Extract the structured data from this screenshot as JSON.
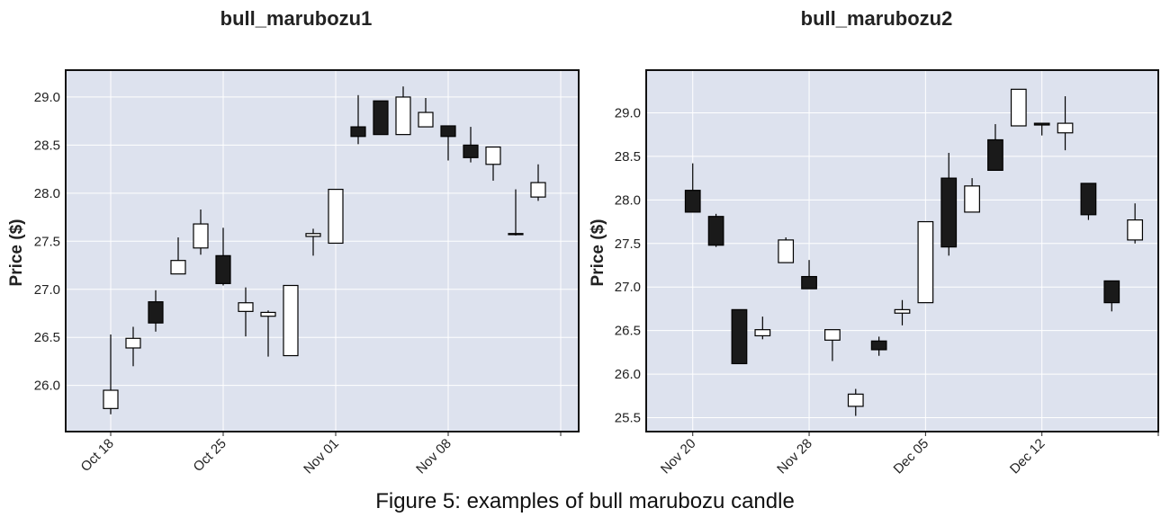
{
  "figure": {
    "caption": "Figure 5: examples of bull marubozu candle"
  },
  "chart_data": [
    {
      "type": "candlestick",
      "title": "bull_marubozu1",
      "ylabel": "Price ($)",
      "xlabel": "",
      "ylim": [
        25.52,
        29.28
      ],
      "yticks": [
        26.0,
        26.5,
        27.0,
        27.5,
        28.0,
        28.5,
        29.0
      ],
      "ytick_labels": [
        "26.0",
        "26.5",
        "27.0",
        "27.5",
        "28.0",
        "28.5",
        "29.0"
      ],
      "xtick_positions": [
        0,
        5,
        10,
        15,
        20
      ],
      "xtick_labels": [
        "Oct 18",
        "Oct 25",
        "Nov 01",
        "Nov 08",
        ""
      ],
      "x_range": [
        -2.0,
        20.8
      ],
      "grid": true,
      "colors": {
        "background": "#dde2ee",
        "up_body": "#ffffff",
        "down_body": "#1a1a1a",
        "edge": "#000000",
        "grid": "#ffffff"
      },
      "candles": [
        {
          "x": 0,
          "open": 25.76,
          "high": 26.53,
          "low": 25.7,
          "close": 25.95
        },
        {
          "x": 1,
          "open": 26.39,
          "high": 26.61,
          "low": 26.2,
          "close": 26.49
        },
        {
          "x": 2,
          "open": 26.87,
          "high": 26.99,
          "low": 26.56,
          "close": 26.65
        },
        {
          "x": 3,
          "open": 27.16,
          "high": 27.54,
          "low": 27.16,
          "close": 27.3
        },
        {
          "x": 4,
          "open": 27.43,
          "high": 27.83,
          "low": 27.36,
          "close": 27.68
        },
        {
          "x": 5,
          "open": 27.35,
          "high": 27.64,
          "low": 27.04,
          "close": 27.06
        },
        {
          "x": 6,
          "open": 26.77,
          "high": 27.02,
          "low": 26.51,
          "close": 26.86
        },
        {
          "x": 7,
          "open": 26.72,
          "high": 26.78,
          "low": 26.3,
          "close": 26.76
        },
        {
          "x": 8,
          "open": 26.31,
          "high": 27.04,
          "low": 26.31,
          "close": 27.04
        },
        {
          "x": 9,
          "open": 27.55,
          "high": 27.63,
          "low": 27.35,
          "close": 27.58
        },
        {
          "x": 10,
          "open": 27.48,
          "high": 28.04,
          "low": 27.48,
          "close": 28.04
        },
        {
          "x": 11,
          "open": 28.69,
          "high": 29.02,
          "low": 28.51,
          "close": 28.59
        },
        {
          "x": 12,
          "open": 28.96,
          "high": 28.96,
          "low": 28.61,
          "close": 28.61
        },
        {
          "x": 13,
          "open": 28.61,
          "high": 29.11,
          "low": 28.61,
          "close": 29.0
        },
        {
          "x": 14,
          "open": 28.69,
          "high": 28.99,
          "low": 28.69,
          "close": 28.84
        },
        {
          "x": 15,
          "open": 28.7,
          "high": 28.7,
          "low": 28.34,
          "close": 28.59
        },
        {
          "x": 16,
          "open": 28.5,
          "high": 28.69,
          "low": 28.32,
          "close": 28.37
        },
        {
          "x": 17,
          "open": 28.3,
          "high": 28.48,
          "low": 28.13,
          "close": 28.48
        },
        {
          "x": 18,
          "open": 27.58,
          "high": 28.04,
          "low": 27.56,
          "close": 27.57
        },
        {
          "x": 19,
          "open": 27.96,
          "high": 28.3,
          "low": 27.92,
          "close": 28.11
        }
      ]
    },
    {
      "type": "candlestick",
      "title": "bull_marubozu2",
      "ylabel": "Price ($)",
      "xlabel": "",
      "ylim": [
        25.34,
        29.49
      ],
      "yticks": [
        25.5,
        26.0,
        26.5,
        27.0,
        27.5,
        28.0,
        28.5,
        29.0
      ],
      "ytick_labels": [
        "25.5",
        "26.0",
        "26.5",
        "27.0",
        "27.5",
        "28.0",
        "28.5",
        "29.0"
      ],
      "xtick_positions": [
        0,
        5,
        10,
        15,
        20
      ],
      "xtick_labels": [
        "Nov 20",
        "Nov 28",
        "Dec 05",
        "Dec 12",
        ""
      ],
      "x_range": [
        -2.0,
        20.0
      ],
      "grid": true,
      "colors": {
        "background": "#dde2ee",
        "up_body": "#ffffff",
        "down_body": "#1a1a1a",
        "edge": "#000000",
        "grid": "#ffffff"
      },
      "candles": [
        {
          "x": 0,
          "open": 28.11,
          "high": 28.42,
          "low": 27.86,
          "close": 27.86
        },
        {
          "x": 1,
          "open": 27.81,
          "high": 27.84,
          "low": 27.46,
          "close": 27.48
        },
        {
          "x": 2,
          "open": 26.74,
          "high": 26.74,
          "low": 26.12,
          "close": 26.12
        },
        {
          "x": 3,
          "open": 26.44,
          "high": 26.66,
          "low": 26.4,
          "close": 26.51
        },
        {
          "x": 4,
          "open": 27.28,
          "high": 27.57,
          "low": 27.28,
          "close": 27.54
        },
        {
          "x": 5,
          "open": 27.12,
          "high": 27.31,
          "low": 26.98,
          "close": 26.98
        },
        {
          "x": 6,
          "open": 26.39,
          "high": 26.51,
          "low": 26.15,
          "close": 26.51
        },
        {
          "x": 7,
          "open": 25.63,
          "high": 25.83,
          "low": 25.52,
          "close": 25.77
        },
        {
          "x": 8,
          "open": 26.38,
          "high": 26.43,
          "low": 26.21,
          "close": 26.28
        },
        {
          "x": 9,
          "open": 26.7,
          "high": 26.85,
          "low": 26.56,
          "close": 26.74
        },
        {
          "x": 10,
          "open": 26.82,
          "high": 27.75,
          "low": 26.82,
          "close": 27.75
        },
        {
          "x": 11,
          "open": 28.25,
          "high": 28.54,
          "low": 27.36,
          "close": 27.46
        },
        {
          "x": 12,
          "open": 27.86,
          "high": 28.25,
          "low": 27.86,
          "close": 28.16
        },
        {
          "x": 13,
          "open": 28.69,
          "high": 28.87,
          "low": 28.34,
          "close": 28.34
        },
        {
          "x": 14,
          "open": 28.85,
          "high": 29.27,
          "low": 28.85,
          "close": 29.27
        },
        {
          "x": 15,
          "open": 28.88,
          "high": 28.88,
          "low": 28.74,
          "close": 28.86
        },
        {
          "x": 16,
          "open": 28.77,
          "high": 29.19,
          "low": 28.57,
          "close": 28.88
        },
        {
          "x": 17,
          "open": 28.19,
          "high": 28.19,
          "low": 27.77,
          "close": 27.83
        },
        {
          "x": 18,
          "open": 27.07,
          "high": 27.07,
          "low": 26.72,
          "close": 26.82
        },
        {
          "x": 19,
          "open": 27.54,
          "high": 27.96,
          "low": 27.5,
          "close": 27.77
        }
      ]
    }
  ]
}
